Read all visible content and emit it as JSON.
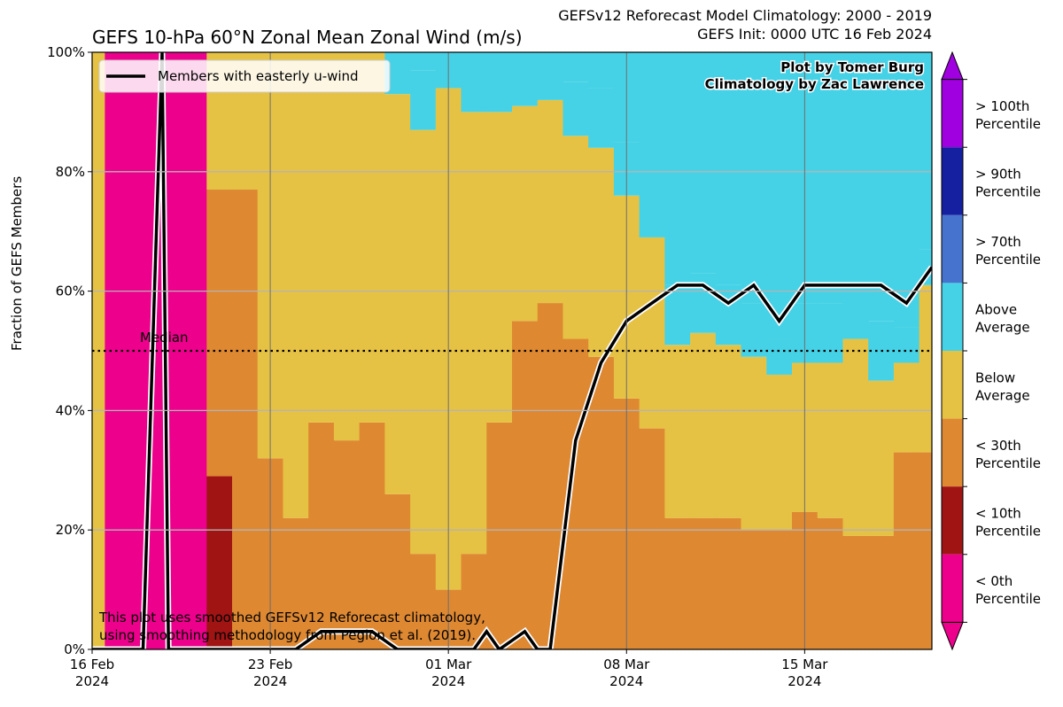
{
  "header": {
    "title": "GEFS 10-hPa 60°N Zonal Mean Zonal Wind (m/s)",
    "climatology_line": "GEFSv12 Reforecast Model Climatology: 2000 - 2019",
    "init_line": "GEFS Init: 0000 UTC 16 Feb 2024"
  },
  "credits": {
    "plot_by": "Plot by Tomer Burg",
    "climatology_by": "Climatology by Zac Lawrence"
  },
  "footnote": {
    "line1": "This plot uses smoothed GEFSv12 Reforecast climatology,",
    "line2": "using smoothing methodology from Pegion et al. (2019)."
  },
  "median_label": "Median",
  "chart_data": {
    "type": "area",
    "title": "GEFS 10-hPa 60°N Zonal Mean Zonal Wind (m/s)",
    "ylabel": "Fraction of GEFS Members",
    "xlabel": "",
    "ylim": [
      0,
      100
    ],
    "yticks": [
      "0%",
      "20%",
      "40%",
      "60%",
      "80%",
      "100%"
    ],
    "yticks_values": [
      0,
      20,
      40,
      60,
      80,
      100
    ],
    "xticks": [
      {
        "line1": "16 Feb",
        "line2": "2024",
        "day": 0
      },
      {
        "line1": "23 Feb",
        "line2": "2024",
        "day": 7
      },
      {
        "line1": "01 Mar",
        "line2": "2024",
        "day": 14
      },
      {
        "line1": "08 Mar",
        "line2": "2024",
        "day": 21
      },
      {
        "line1": "15 Mar",
        "line2": "2024",
        "day": 28
      }
    ],
    "xlim_days": [
      0,
      33
    ],
    "grid": true,
    "median_line": 50,
    "categories_colors": {
      "lt0": "#ec008c",
      "lt10": "#a01414",
      "lt30": "#de8832",
      "below": "#e6c244",
      "above": "#46d2e6",
      "gt70": "#4673cd",
      "gt90": "#1420a0",
      "gt100": "#a000e0"
    },
    "colorbar_labels": [
      {
        "line1": "> 100th",
        "line2": "Percentile"
      },
      {
        "line1": "> 90th",
        "line2": "Percentile"
      },
      {
        "line1": "> 70th",
        "line2": "Percentile"
      },
      {
        "line1": "Above",
        "line2": "Average"
      },
      {
        "line1": "Below",
        "line2": "Average"
      },
      {
        "line1": "< 30th",
        "line2": "Percentile"
      },
      {
        "line1": "< 10th",
        "line2": "Percentile"
      },
      {
        "line1": "< 0th",
        "line2": "Percentile"
      }
    ],
    "stack_x_start": [
      0,
      0.5,
      1.5,
      2.5,
      3.5,
      4.5,
      5.5,
      6.5,
      7.5,
      8.5,
      9.5,
      10.5,
      11.5,
      12.5,
      13.5,
      14.5,
      15.5,
      16.5,
      17.5,
      18.5,
      19.5,
      20.5,
      21.5,
      22.5,
      23.5,
      24.5,
      25.5,
      26.5,
      27.5,
      28.5,
      29.5,
      30.5,
      31.5,
      32.5
    ],
    "stack_x_end": [
      0.5,
      1.5,
      2.5,
      3.5,
      4.5,
      5.5,
      6.5,
      7.5,
      8.5,
      9.5,
      10.5,
      11.5,
      12.5,
      13.5,
      14.5,
      15.5,
      16.5,
      17.5,
      18.5,
      19.5,
      20.5,
      21.5,
      22.5,
      23.5,
      24.5,
      25.5,
      26.5,
      27.5,
      28.5,
      29.5,
      30.5,
      31.5,
      32.5,
      33
    ],
    "series": [
      {
        "name": "< 0th Percentile",
        "key": "lt0",
        "values": [
          0,
          100,
          100,
          100,
          100,
          0,
          0,
          0,
          0,
          0,
          0,
          0,
          0,
          0,
          0,
          0,
          0,
          0,
          0,
          0,
          0,
          0,
          0,
          0,
          0,
          0,
          0,
          0,
          0,
          0,
          0,
          0,
          0,
          0
        ]
      },
      {
        "name": "< 10th Percentile",
        "key": "lt10",
        "values": [
          0,
          0,
          0,
          0,
          0,
          29,
          0,
          0,
          0,
          0,
          0,
          0,
          0,
          0,
          0,
          0,
          0,
          0,
          0,
          0,
          0,
          0,
          0,
          0,
          0,
          0,
          0,
          0,
          0,
          0,
          0,
          0,
          0,
          0
        ]
      },
      {
        "name": "< 30th Percentile",
        "key": "lt30",
        "values": [
          0,
          0,
          0,
          0,
          0,
          48,
          77,
          32,
          22,
          38,
          35,
          38,
          26,
          16,
          10,
          16,
          38,
          55,
          58,
          52,
          49,
          42,
          37,
          22,
          22,
          22,
          20,
          20,
          23,
          22,
          19,
          19,
          33,
          33
        ]
      },
      {
        "name": "Below Average",
        "key": "below",
        "values": [
          100,
          0,
          0,
          0,
          0,
          23,
          23,
          68,
          78,
          62,
          65,
          62,
          67,
          71,
          84,
          74,
          52,
          36,
          34,
          34,
          35,
          34,
          32,
          29,
          31,
          29,
          29,
          26,
          25,
          26,
          33,
          26,
          15,
          28
        ]
      },
      {
        "name": "Above Average",
        "key": "above",
        "values": [
          0,
          0,
          0,
          0,
          0,
          0,
          0,
          0,
          0,
          0,
          0,
          0,
          7,
          10,
          6,
          10,
          10,
          9,
          8,
          9,
          10,
          9,
          6,
          10,
          10,
          10,
          9,
          6,
          10,
          10,
          9,
          10,
          6,
          6
        ]
      }
    ],
    "members_easterly": {
      "name": "Members with easterly u-wind",
      "x_days": [
        0,
        1,
        2,
        2.75,
        3,
        3.5,
        4,
        5,
        6,
        7,
        8,
        9,
        10,
        11,
        12,
        13,
        14,
        15,
        15.5,
        16,
        17,
        17.5,
        18,
        19,
        20,
        21,
        22,
        23,
        24,
        25,
        26,
        27,
        28,
        29,
        30,
        31,
        32,
        33
      ],
      "values": [
        0,
        0,
        0,
        100,
        0,
        0,
        0,
        0,
        0,
        0,
        0,
        3,
        3,
        3,
        0,
        0,
        0,
        0,
        3,
        0,
        3,
        0,
        0,
        35,
        48,
        55,
        58,
        61,
        61,
        58,
        61,
        55,
        61,
        61,
        61,
        61,
        58,
        64
      ]
    }
  }
}
